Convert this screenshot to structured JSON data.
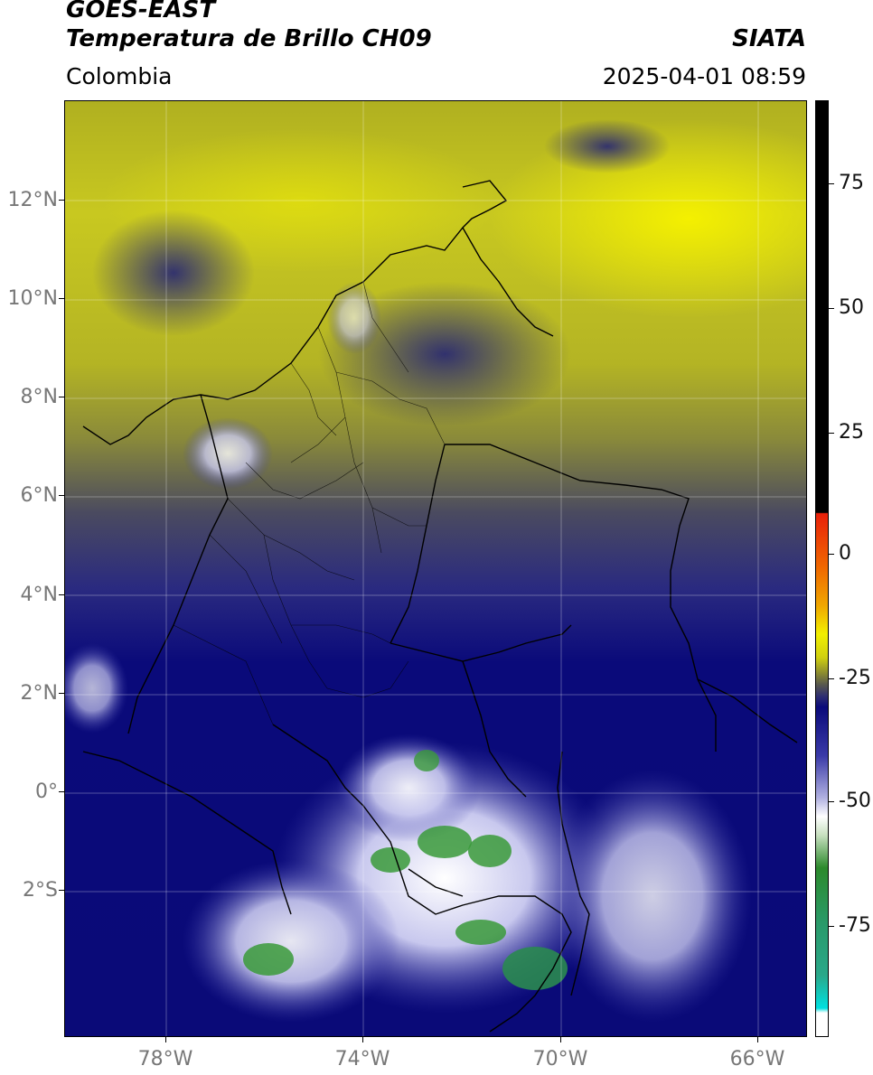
{
  "header": {
    "satellite": "GOES-EAST",
    "product": "Temperatura de Brillo CH09",
    "credit": "SIATA",
    "region": "Colombia",
    "timestamp": "2025-04-01 08:59"
  },
  "axes": {
    "lat_labels": [
      "12°N",
      "10°N",
      "8°N",
      "6°N",
      "4°N",
      "2°N",
      "0°",
      "2°S"
    ],
    "lon_labels": [
      "78°W",
      "74°W",
      "70°W",
      "66°W"
    ]
  },
  "colorbar": {
    "tick_labels": [
      "75",
      "50",
      "25",
      "0",
      "-25",
      "-50",
      "-75"
    ],
    "colors": {
      "black": "#000000",
      "red": "#e8200a",
      "orange": "#f08a00",
      "yellow": "#f2f000",
      "olive": "#9a9a2a",
      "gray": "#555550",
      "navy": "#0a0a7a",
      "blue": "#3a3aa8",
      "lavender": "#b0b0e0",
      "white": "#ffffff",
      "green": "#2c8a2c",
      "teal": "#2aa88a",
      "cyan": "#00e0e0"
    }
  }
}
